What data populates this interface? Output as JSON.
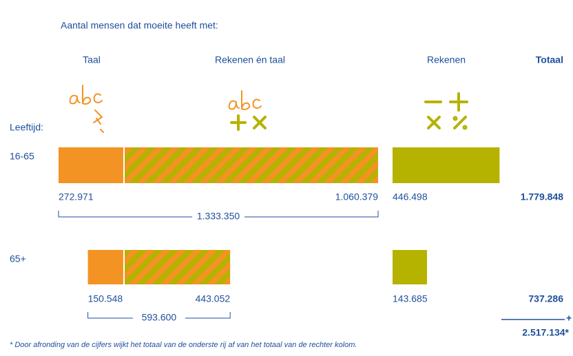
{
  "chart_data": {
    "type": "bar",
    "stacked": true,
    "orientation": "horizontal",
    "title": "Aantal mensen dat moeite heeft met:",
    "y_label": "Leeftijd:",
    "categories": [
      "16-65",
      "65+"
    ],
    "series": [
      {
        "name": "Taal",
        "color": "#f39323",
        "values": [
          272971,
          150548
        ],
        "value_labels": [
          "272.971",
          "150.548"
        ]
      },
      {
        "name": "Rekenen én taal",
        "color": "#f39323",
        "stripe_color": "#b5b200",
        "pattern": "stripes",
        "values": [
          1060379,
          443052
        ],
        "value_labels": [
          "1.060.379",
          "443.052"
        ]
      },
      {
        "name": "Rekenen",
        "color": "#b5b200",
        "values": [
          446498,
          143685
        ],
        "value_labels": [
          "446.498",
          "143.685"
        ]
      }
    ],
    "subtotals": {
      "values": [
        1333350,
        593600
      ],
      "value_labels": [
        "1.333.350",
        "593.600"
      ]
    },
    "totals_label": "Totaal",
    "totals": {
      "values": [
        1779848,
        737286
      ],
      "value_labels": [
        "1.779.848",
        "737.286"
      ]
    },
    "sum_sign": "+",
    "grand_total": {
      "value": 2517134,
      "label": "2.517.134*"
    },
    "footnote": "* Door afronding van de cijfers wijkt het totaal van de onderste rij af van het totaal van de rechter kolom."
  }
}
